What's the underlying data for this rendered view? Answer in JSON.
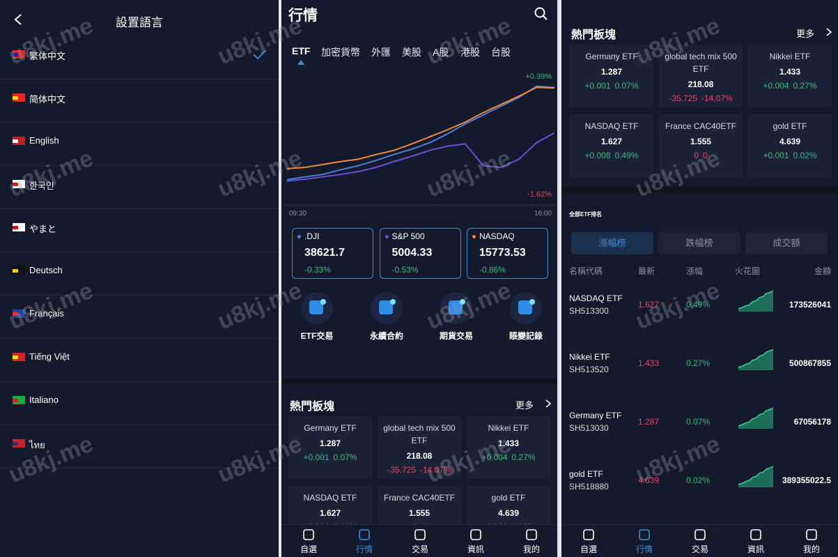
{
  "language_panel": {
    "title": "設置語言",
    "languages": [
      "繁体中文",
      "简体中文",
      "English",
      "한국인",
      "やまと",
      "Deutsch",
      "Français",
      "Tiếng Việt",
      "Italiano",
      "ไทย"
    ],
    "selected": 0
  },
  "market_panel": {
    "title": "行情",
    "tabs": [
      "ETF",
      "加密貨幣",
      "外匯",
      "美股",
      "A股",
      "港股",
      "台股"
    ],
    "active_tab": 0,
    "chart": {
      "type": "line",
      "ylim": [
        -1.75,
        0.5
      ],
      "high_label": "+0.39%",
      "low_label": "-1.62%",
      "x_start": "09:30",
      "x_end": "16:00",
      "series": [
        {
          "color": "#4d7fd6",
          "values": [
            -1.37,
            -1.32,
            -1.28,
            -1.2,
            -1.13,
            -1.04,
            -0.94,
            -0.85,
            -0.74,
            -0.59,
            -0.42,
            -0.27,
            -0.12,
            0.03,
            0.22,
            0.2
          ]
        },
        {
          "color": "#f08a3c",
          "values": [
            -1.18,
            -1.16,
            -1.11,
            -1.06,
            -1.02,
            -0.94,
            -0.87,
            -0.76,
            -0.64,
            -0.52,
            -0.39,
            -0.23,
            -0.09,
            0.05,
            0.2,
            0.19
          ]
        },
        {
          "color": "#6f4fd8",
          "values": [
            -1.39,
            -1.36,
            -1.32,
            -1.28,
            -1.23,
            -1.16,
            -1.06,
            -0.97,
            -0.87,
            -0.8,
            -0.76,
            -1.13,
            -1.16,
            -1.02,
            -0.74,
            -0.57
          ]
        }
      ]
    },
    "indices": [
      {
        "name": ".DJI",
        "color": "#4d7fd6",
        "price": "38621.7",
        "change": "-0.33%"
      },
      {
        "name": "S&P 500",
        "color": "#6f4fd8",
        "price": "5004.33",
        "change": "-0.53%"
      },
      {
        "name": "NASDAQ",
        "color": "#f08a3c",
        "price": "15773.53",
        "change": "-0.86%"
      }
    ],
    "actions": [
      "ETF交易",
      "永續合約",
      "期貨交易",
      "賬變記錄"
    ],
    "hot": {
      "title": "熱門板塊",
      "more": "更多",
      "cards": [
        {
          "name": "Germany ETF",
          "price": "1.287",
          "change": "+0.001",
          "pct": "0.07%",
          "trend": "up"
        },
        {
          "name": "global tech mix 500 ETF",
          "price": "218.08",
          "change": "-35.725",
          "pct": "-14.07%",
          "trend": "down"
        },
        {
          "name": "Nikkei ETF",
          "price": "1.433",
          "change": "+0.004",
          "pct": "0.27%",
          "trend": "up"
        },
        {
          "name": "NASDAQ ETF",
          "price": "1.627",
          "change": "+0.008",
          "pct": "0.49%",
          "trend": "up"
        },
        {
          "name": "France CAC40ETF",
          "price": "1.555",
          "change": "0",
          "pct": "0",
          "trend": "down"
        },
        {
          "name": "gold ETF",
          "price": "4.639",
          "change": "+0.001",
          "pct": "0.02%",
          "trend": "up"
        }
      ]
    }
  },
  "ranking_panel": {
    "title": "全部ETF排名",
    "tabs": [
      "漲幅榜",
      "跌幅榜",
      "成交額"
    ],
    "active_tab": 0,
    "columns": [
      "名稱代碼",
      "最新",
      "漲幅",
      "火花圖",
      "金額"
    ],
    "rows": [
      {
        "name": "NASDAQ ETF",
        "code": "SH513300",
        "price": "1.627",
        "pct": "0.49%",
        "amount": "173526041"
      },
      {
        "name": "Nikkei ETF",
        "code": "SH513520",
        "price": "1.433",
        "pct": "0.27%",
        "amount": "500867855"
      },
      {
        "name": "Germany ETF",
        "code": "SH513030",
        "price": "1.287",
        "pct": "0.07%",
        "amount": "67056178"
      },
      {
        "name": "gold ETF",
        "code": "SH518880",
        "price": "4.639",
        "pct": "0.02%",
        "amount": "389355022.5"
      }
    ]
  },
  "nav": [
    "自選",
    "行情",
    "交易",
    "資訊",
    "我的"
  ],
  "active_nav": 1,
  "watermark": "u8kj.me"
}
